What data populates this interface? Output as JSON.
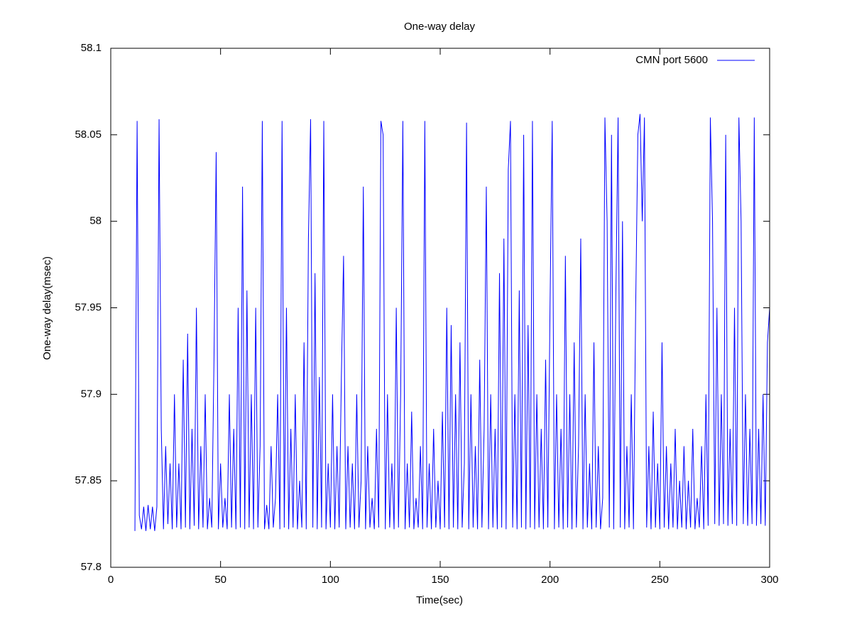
{
  "chart_data": {
    "type": "line",
    "title": "One-way delay",
    "x_label": "Time(sec)",
    "y_label": "One-way delay(msec)",
    "xlim": [
      0,
      300
    ],
    "ylim": [
      57.8,
      58.1
    ],
    "xticks": [
      0,
      50,
      100,
      150,
      200,
      250,
      300
    ],
    "yticks": [
      57.8,
      57.85,
      57.9,
      57.95,
      58,
      58.05,
      58.1
    ],
    "grid": false,
    "legend": "top-right",
    "x": [
      11,
      12,
      13,
      14,
      15,
      16,
      17,
      18,
      19,
      20,
      21,
      22,
      23,
      24,
      25,
      26,
      27,
      28,
      29,
      30,
      31,
      32,
      33,
      34,
      35,
      36,
      37,
      38,
      39,
      40,
      41,
      42,
      43,
      44,
      45,
      46,
      47,
      48,
      49,
      50,
      51,
      52,
      53,
      54,
      55,
      56,
      57,
      58,
      59,
      60,
      61,
      62,
      63,
      64,
      65,
      66,
      67,
      68,
      69,
      70,
      71,
      72,
      73,
      74,
      75,
      76,
      77,
      78,
      79,
      80,
      81,
      82,
      83,
      84,
      85,
      86,
      87,
      88,
      89,
      90,
      91,
      92,
      93,
      94,
      95,
      96,
      97,
      98,
      99,
      100,
      101,
      102,
      103,
      104,
      105,
      106,
      107,
      108,
      109,
      110,
      111,
      112,
      113,
      114,
      115,
      116,
      117,
      118,
      119,
      120,
      121,
      122,
      123,
      124,
      125,
      126,
      127,
      128,
      129,
      130,
      131,
      132,
      133,
      134,
      135,
      136,
      137,
      138,
      139,
      140,
      141,
      142,
      143,
      144,
      145,
      146,
      147,
      148,
      149,
      150,
      151,
      152,
      153,
      154,
      155,
      156,
      157,
      158,
      159,
      160,
      161,
      162,
      163,
      164,
      165,
      166,
      167,
      168,
      169,
      170,
      171,
      172,
      173,
      174,
      175,
      176,
      177,
      178,
      179,
      180,
      181,
      182,
      183,
      184,
      185,
      186,
      187,
      188,
      189,
      190,
      191,
      192,
      193,
      194,
      195,
      196,
      197,
      198,
      199,
      200,
      201,
      202,
      203,
      204,
      205,
      206,
      207,
      208,
      209,
      210,
      211,
      212,
      213,
      214,
      215,
      216,
      217,
      218,
      219,
      220,
      221,
      222,
      223,
      224,
      225,
      226,
      227,
      228,
      229,
      230,
      231,
      232,
      233,
      234,
      235,
      236,
      237,
      238,
      239,
      240,
      241,
      242,
      243,
      244,
      245,
      246,
      247,
      248,
      249,
      250,
      251,
      252,
      253,
      254,
      255,
      256,
      257,
      258,
      259,
      260,
      261,
      262,
      263,
      264,
      265,
      266,
      267,
      268,
      269,
      270,
      271,
      272,
      273,
      274,
      275,
      276,
      277,
      278,
      279,
      280,
      281,
      282,
      283,
      284,
      285,
      286,
      287,
      288,
      289,
      290,
      291,
      292,
      293,
      294,
      295,
      296,
      297,
      298,
      299,
      300
    ],
    "series": [
      {
        "name": "CMN port 5600",
        "color": "#0000ff",
        "values": [
          57.821,
          58.058,
          57.83,
          57.822,
          57.835,
          57.821,
          57.836,
          57.822,
          57.835,
          57.821,
          57.835,
          58.059,
          57.88,
          57.822,
          57.87,
          57.825,
          57.86,
          57.822,
          57.9,
          57.823,
          57.86,
          57.822,
          57.92,
          57.823,
          57.935,
          57.822,
          57.88,
          57.824,
          57.95,
          57.822,
          57.87,
          57.823,
          57.9,
          57.822,
          57.84,
          57.823,
          57.92,
          58.04,
          57.822,
          57.86,
          57.823,
          57.84,
          57.822,
          57.9,
          57.823,
          57.88,
          57.822,
          57.95,
          57.823,
          58.02,
          57.822,
          57.96,
          57.823,
          57.9,
          57.822,
          57.95,
          57.823,
          57.87,
          58.058,
          57.822,
          57.836,
          57.822,
          57.87,
          57.823,
          57.84,
          57.9,
          57.822,
          58.058,
          57.823,
          57.95,
          57.822,
          57.88,
          57.823,
          57.9,
          57.822,
          57.85,
          57.823,
          57.93,
          57.822,
          57.99,
          58.059,
          57.823,
          57.97,
          57.822,
          57.91,
          57.823,
          58.058,
          57.822,
          57.86,
          57.823,
          57.9,
          57.822,
          57.87,
          57.823,
          57.91,
          57.98,
          57.822,
          57.87,
          57.823,
          57.86,
          57.822,
          57.9,
          57.823,
          57.85,
          58.02,
          57.822,
          57.87,
          57.823,
          57.84,
          57.822,
          57.88,
          57.823,
          58.058,
          58.05,
          57.822,
          57.9,
          57.823,
          57.86,
          57.822,
          57.95,
          57.823,
          57.9,
          58.058,
          57.822,
          57.86,
          57.823,
          57.89,
          57.822,
          57.84,
          57.823,
          57.87,
          57.822,
          58.058,
          57.823,
          57.86,
          57.822,
          57.88,
          57.823,
          57.85,
          57.822,
          57.89,
          57.823,
          57.95,
          57.822,
          57.94,
          57.823,
          57.9,
          57.822,
          57.93,
          57.823,
          57.86,
          58.057,
          57.822,
          57.9,
          57.823,
          57.87,
          57.822,
          57.92,
          57.823,
          57.88,
          58.02,
          57.822,
          57.9,
          57.823,
          57.88,
          57.822,
          57.97,
          57.823,
          57.99,
          57.822,
          58.03,
          58.058,
          57.823,
          57.9,
          57.822,
          57.96,
          57.823,
          58.05,
          57.822,
          57.94,
          57.823,
          58.058,
          57.822,
          57.9,
          57.823,
          57.88,
          57.822,
          57.92,
          57.823,
          57.95,
          58.058,
          57.822,
          57.9,
          57.823,
          57.88,
          57.822,
          57.98,
          57.823,
          57.9,
          57.822,
          57.93,
          57.823,
          57.87,
          57.99,
          57.822,
          57.9,
          57.823,
          57.86,
          57.822,
          57.93,
          57.823,
          57.87,
          57.822,
          57.84,
          58.06,
          58.0,
          57.823,
          58.05,
          57.822,
          57.96,
          58.06,
          57.823,
          58.0,
          57.822,
          57.87,
          57.823,
          57.9,
          57.822,
          57.95,
          58.05,
          58.062,
          58.0,
          58.06,
          57.823,
          57.87,
          57.822,
          57.89,
          57.823,
          57.86,
          57.822,
          57.93,
          57.823,
          57.87,
          57.822,
          57.86,
          57.823,
          57.88,
          57.822,
          57.85,
          57.823,
          57.87,
          57.822,
          57.85,
          57.823,
          57.88,
          57.822,
          57.84,
          57.823,
          57.87,
          57.822,
          57.9,
          57.824,
          58.06,
          58.0,
          57.825,
          57.95,
          57.824,
          57.9,
          57.825,
          58.05,
          57.824,
          57.88,
          57.825,
          57.95,
          57.824,
          58.06,
          58.0,
          57.825,
          57.9,
          57.824,
          57.88,
          57.825,
          58.06,
          57.824,
          57.88,
          57.825,
          57.9,
          57.824,
          57.93,
          57.95
        ]
      }
    ]
  }
}
